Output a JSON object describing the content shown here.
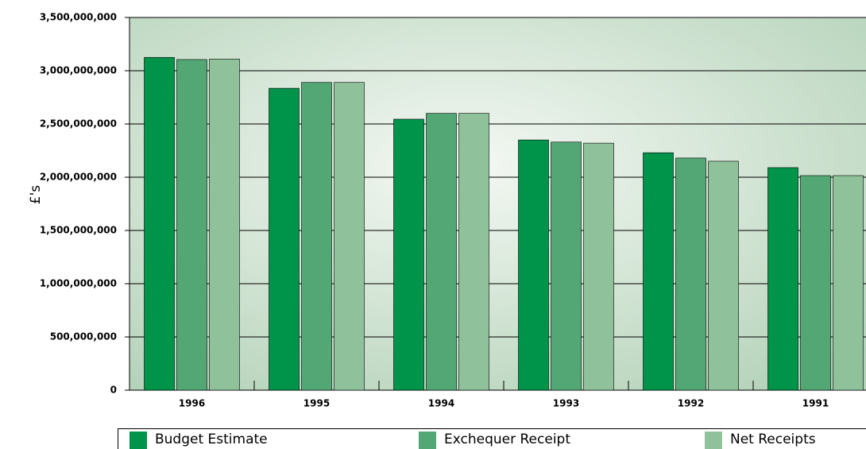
{
  "chart_data": {
    "type": "bar",
    "y_label": "£'s",
    "categories": [
      "1996",
      "1995",
      "1994",
      "1993",
      "1992",
      "1991"
    ],
    "series": [
      {
        "name": "Budget Estimate",
        "color": "#00934a",
        "values": [
          3125000000,
          2835000000,
          2545000000,
          2350000000,
          2230000000,
          2090000000
        ]
      },
      {
        "name": "Exchequer Receipt",
        "color": "#52a775",
        "values": [
          3105000000,
          2890000000,
          2600000000,
          2330000000,
          2180000000,
          2015000000
        ]
      },
      {
        "name": "Net Receipts",
        "color": "#8fc19a",
        "values": [
          3110000000,
          2890000000,
          2600000000,
          2320000000,
          2150000000,
          2015000000
        ]
      }
    ],
    "ylim": [
      0,
      3500000000
    ],
    "yticks": [
      0,
      {
        "value": 500000000,
        "label": "500,000,000"
      },
      {
        "value": 1000000000,
        "label": "1,000,000,000"
      },
      {
        "value": 1500000000,
        "label": "1,500,000,000"
      },
      {
        "value": 2000000000,
        "label": "2,000,000,000"
      },
      {
        "value": 2500000000,
        "label": "2,500,000,000"
      },
      {
        "value": 3000000000,
        "label": "3,000,000,000"
      },
      {
        "value": 3500000000,
        "label": "3,500,000,000"
      }
    ],
    "grid": true
  }
}
